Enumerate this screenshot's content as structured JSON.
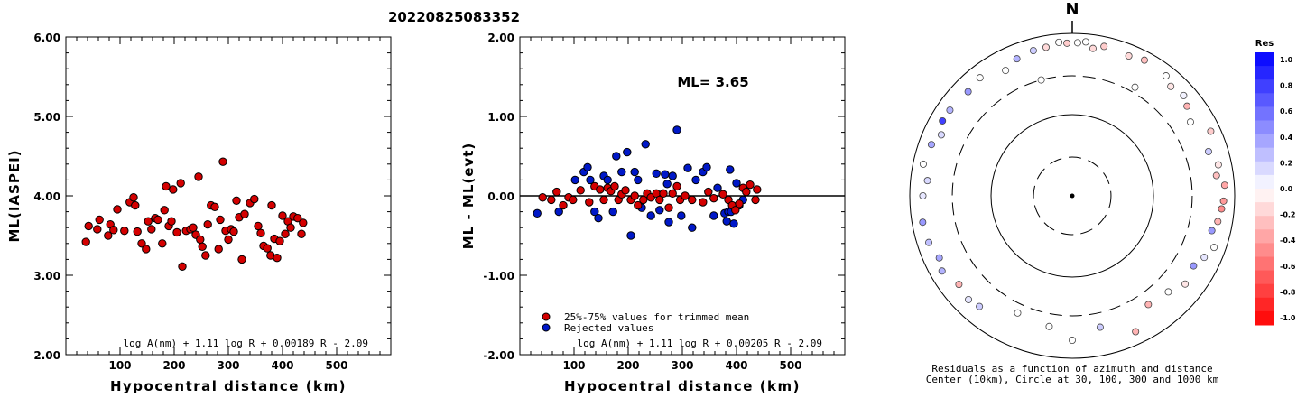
{
  "title": "20220825083352",
  "chart_data": [
    {
      "type": "scatter",
      "ylabel": "ML(IASPEI)",
      "xlabel": "Hypocentral distance (km)",
      "xticks": [
        "100",
        "200",
        "300",
        "400",
        "500"
      ],
      "yticks": [
        "2.00",
        "3.00",
        "4.00",
        "5.00",
        "6.00"
      ],
      "xlim": [
        0,
        600
      ],
      "ylim": [
        2.0,
        6.0
      ],
      "formula": "log A(nm) + 1.11 log R + 0.00189 R - 2.09",
      "marker_color": "#d40000",
      "points": [
        [
          37,
          3.42
        ],
        [
          42,
          3.62
        ],
        [
          58,
          3.58
        ],
        [
          62,
          3.7
        ],
        [
          78,
          3.5
        ],
        [
          82,
          3.64
        ],
        [
          88,
          3.57
        ],
        [
          95,
          3.83
        ],
        [
          108,
          3.56
        ],
        [
          118,
          3.92
        ],
        [
          125,
          3.98
        ],
        [
          128,
          3.88
        ],
        [
          132,
          3.55
        ],
        [
          140,
          3.4
        ],
        [
          148,
          3.33
        ],
        [
          152,
          3.68
        ],
        [
          158,
          3.58
        ],
        [
          165,
          3.72
        ],
        [
          170,
          3.7
        ],
        [
          178,
          3.4
        ],
        [
          182,
          3.82
        ],
        [
          185,
          4.12
        ],
        [
          190,
          3.62
        ],
        [
          195,
          3.68
        ],
        [
          198,
          4.08
        ],
        [
          205,
          3.54
        ],
        [
          212,
          4.16
        ],
        [
          215,
          3.11
        ],
        [
          222,
          3.56
        ],
        [
          230,
          3.58
        ],
        [
          235,
          3.6
        ],
        [
          240,
          3.51
        ],
        [
          245,
          4.24
        ],
        [
          248,
          3.45
        ],
        [
          252,
          3.36
        ],
        [
          258,
          3.25
        ],
        [
          262,
          3.64
        ],
        [
          268,
          3.88
        ],
        [
          275,
          3.86
        ],
        [
          282,
          3.33
        ],
        [
          285,
          3.7
        ],
        [
          290,
          4.43
        ],
        [
          295,
          3.56
        ],
        [
          300,
          3.45
        ],
        [
          305,
          3.58
        ],
        [
          310,
          3.55
        ],
        [
          315,
          3.94
        ],
        [
          320,
          3.73
        ],
        [
          325,
          3.2
        ],
        [
          330,
          3.77
        ],
        [
          340,
          3.91
        ],
        [
          348,
          3.96
        ],
        [
          355,
          3.62
        ],
        [
          360,
          3.53
        ],
        [
          365,
          3.37
        ],
        [
          372,
          3.34
        ],
        [
          378,
          3.25
        ],
        [
          380,
          3.88
        ],
        [
          385,
          3.46
        ],
        [
          390,
          3.22
        ],
        [
          395,
          3.43
        ],
        [
          400,
          3.75
        ],
        [
          405,
          3.52
        ],
        [
          410,
          3.68
        ],
        [
          415,
          3.6
        ],
        [
          420,
          3.74
        ],
        [
          428,
          3.72
        ],
        [
          435,
          3.52
        ],
        [
          438,
          3.66
        ]
      ]
    },
    {
      "type": "scatter",
      "ylabel": "ML - ML(evt)",
      "xlabel": "Hypocentral distance (km)",
      "xticks": [
        "100",
        "200",
        "300",
        "400",
        "500"
      ],
      "yticks": [
        "-2.00",
        "-1.00",
        "0.00",
        "1.00",
        "2.00"
      ],
      "xlim": [
        0,
        600
      ],
      "ylim": [
        -2.0,
        2.0
      ],
      "annotation": "ML= 3.65",
      "formula": "log A(nm) + 1.11 log R + 0.00205 R - 2.09",
      "legend_location": "bottom-left",
      "series": [
        {
          "name": "25%-75% values for trimmed mean",
          "color": "#d40000",
          "points": [
            [
              42,
              -0.02
            ],
            [
              58,
              -0.05
            ],
            [
              68,
              0.05
            ],
            [
              80,
              -0.12
            ],
            [
              90,
              -0.02
            ],
            [
              98,
              -0.05
            ],
            [
              112,
              0.07
            ],
            [
              128,
              -0.08
            ],
            [
              138,
              0.12
            ],
            [
              148,
              0.08
            ],
            [
              155,
              -0.05
            ],
            [
              162,
              0.1
            ],
            [
              168,
              0.06
            ],
            [
              175,
              0.12
            ],
            [
              182,
              -0.05
            ],
            [
              188,
              0.02
            ],
            [
              195,
              0.07
            ],
            [
              205,
              -0.05
            ],
            [
              212,
              0.0
            ],
            [
              218,
              -0.12
            ],
            [
              228,
              -0.05
            ],
            [
              235,
              0.03
            ],
            [
              242,
              -0.02
            ],
            [
              252,
              0.03
            ],
            [
              258,
              -0.05
            ],
            [
              265,
              0.03
            ],
            [
              275,
              -0.15
            ],
            [
              282,
              0.03
            ],
            [
              290,
              0.12
            ],
            [
              296,
              -0.05
            ],
            [
              305,
              0.0
            ],
            [
              318,
              -0.05
            ],
            [
              338,
              -0.08
            ],
            [
              348,
              0.05
            ],
            [
              358,
              -0.03
            ],
            [
              375,
              0.02
            ],
            [
              385,
              -0.05
            ],
            [
              392,
              -0.12
            ],
            [
              398,
              -0.18
            ],
            [
              405,
              -0.1
            ],
            [
              412,
              0.1
            ],
            [
              418,
              0.05
            ],
            [
              425,
              0.14
            ],
            [
              435,
              -0.05
            ],
            [
              438,
              0.08
            ]
          ]
        },
        {
          "name": "Rejected values",
          "color": "#0018c8",
          "points": [
            [
              32,
              -0.22
            ],
            [
              72,
              -0.2
            ],
            [
              102,
              0.2
            ],
            [
              118,
              0.3
            ],
            [
              125,
              0.36
            ],
            [
              130,
              0.2
            ],
            [
              138,
              -0.2
            ],
            [
              145,
              -0.28
            ],
            [
              155,
              0.25
            ],
            [
              162,
              0.2
            ],
            [
              172,
              -0.2
            ],
            [
              178,
              0.5
            ],
            [
              188,
              0.3
            ],
            [
              198,
              0.55
            ],
            [
              205,
              -0.5
            ],
            [
              212,
              0.3
            ],
            [
              218,
              0.2
            ],
            [
              225,
              -0.15
            ],
            [
              232,
              0.65
            ],
            [
              242,
              -0.25
            ],
            [
              252,
              0.28
            ],
            [
              258,
              -0.18
            ],
            [
              268,
              0.27
            ],
            [
              272,
              0.15
            ],
            [
              275,
              -0.33
            ],
            [
              282,
              0.25
            ],
            [
              290,
              0.83
            ],
            [
              298,
              -0.25
            ],
            [
              310,
              0.35
            ],
            [
              318,
              -0.4
            ],
            [
              325,
              0.2
            ],
            [
              338,
              0.3
            ],
            [
              345,
              0.36
            ],
            [
              358,
              -0.25
            ],
            [
              365,
              0.1
            ],
            [
              378,
              -0.22
            ],
            [
              382,
              -0.32
            ],
            [
              385,
              -0.2
            ],
            [
              388,
              0.33
            ],
            [
              390,
              -0.2
            ],
            [
              395,
              -0.35
            ],
            [
              400,
              0.16
            ],
            [
              405,
              -0.12
            ],
            [
              412,
              -0.05
            ]
          ]
        }
      ]
    },
    {
      "type": "polar-scatter",
      "north_label": "N",
      "caption_line1": "Residuals as a function of azimuth and distance",
      "caption_line2": "Center (10km), Circle at 30, 100, 300 and 1000 km",
      "circles_km": [
        30,
        100,
        300,
        1000
      ],
      "colorbar": {
        "title": "Res",
        "ticks": [
          "1.0",
          "0.8",
          "0.6",
          "0.4",
          "0.2",
          "0.0",
          "-0.2",
          "-0.4",
          "-0.6",
          "-0.8",
          "-1.0"
        ],
        "max_color": "#0000ff",
        "zero_color": "#ffffff",
        "min_color": "#ff0000"
      },
      "points": [
        {
          "az": 12,
          "dist": 760,
          "res": -0.2
        },
        {
          "az": 22,
          "dist": 720,
          "res": -0.15
        },
        {
          "az": 28,
          "dist": 780,
          "res": -0.25
        },
        {
          "az": 38,
          "dist": 750,
          "res": 0.0
        },
        {
          "az": 42,
          "dist": 650,
          "res": -0.1
        },
        {
          "az": 48,
          "dist": 700,
          "res": 0.05
        },
        {
          "az": 58,
          "dist": 520,
          "res": 0.0
        },
        {
          "az": 52,
          "dist": 620,
          "res": -0.3
        },
        {
          "az": 65,
          "dist": 760,
          "res": -0.2
        },
        {
          "az": 72,
          "dist": 580,
          "res": 0.2
        },
        {
          "az": 78,
          "dist": 690,
          "res": -0.1
        },
        {
          "az": 82,
          "dist": 620,
          "res": -0.25
        },
        {
          "az": 86,
          "dist": 760,
          "res": -0.35
        },
        {
          "az": 92,
          "dist": 730,
          "res": -0.4
        },
        {
          "az": 95,
          "dist": 700,
          "res": -0.45
        },
        {
          "az": 100,
          "dist": 660,
          "res": -0.3
        },
        {
          "az": 104,
          "dist": 590,
          "res": 0.4
        },
        {
          "az": 110,
          "dist": 720,
          "res": 0.0
        },
        {
          "az": 115,
          "dist": 620,
          "res": 0.1
        },
        {
          "az": 120,
          "dist": 530,
          "res": 0.4
        },
        {
          "az": 128,
          "dist": 580,
          "res": -0.1
        },
        {
          "az": 135,
          "dist": 470,
          "res": 0.0
        },
        {
          "az": 145,
          "dist": 430,
          "res": -0.3
        },
        {
          "az": 155,
          "dist": 700,
          "res": -0.3
        },
        {
          "az": 168,
          "dist": 450,
          "res": 0.2
        },
        {
          "az": 180,
          "dist": 600,
          "res": 0.0
        },
        {
          "az": 190,
          "dist": 430,
          "res": 0.0
        },
        {
          "az": 205,
          "dist": 390,
          "res": 0.0
        },
        {
          "az": 220,
          "dist": 600,
          "res": 0.2
        },
        {
          "az": 225,
          "dist": 640,
          "res": 0.1
        },
        {
          "az": 232,
          "dist": 590,
          "res": -0.3
        },
        {
          "az": 240,
          "dist": 710,
          "res": 0.3
        },
        {
          "az": 245,
          "dist": 640,
          "res": 0.35
        },
        {
          "az": 252,
          "dist": 720,
          "res": 0.25
        },
        {
          "az": 260,
          "dist": 740,
          "res": 0.4
        },
        {
          "az": 270,
          "dist": 690,
          "res": 0.1
        },
        {
          "az": 276,
          "dist": 620,
          "res": 0.15
        },
        {
          "az": 282,
          "dist": 750,
          "res": 0.0
        },
        {
          "az": 290,
          "dist": 700,
          "res": 0.35
        },
        {
          "az": 295,
          "dist": 600,
          "res": 0.15
        },
        {
          "az": 300,
          "dist": 700,
          "res": 0.75
        },
        {
          "az": 305,
          "dist": 690,
          "res": 0.3
        },
        {
          "az": 315,
          "dist": 650,
          "res": 0.4
        },
        {
          "az": 322,
          "dist": 700,
          "res": 0.0
        },
        {
          "az": 332,
          "dist": 560,
          "res": 0.0
        },
        {
          "az": 338,
          "dist": 660,
          "res": 0.3
        },
        {
          "az": 345,
          "dist": 710,
          "res": 0.2
        },
        {
          "az": 350,
          "dist": 720,
          "res": -0.15
        },
        {
          "az": 355,
          "dist": 790,
          "res": 0.0
        },
        {
          "az": 358,
          "dist": 760,
          "res": -0.2
        },
        {
          "az": 2,
          "dist": 770,
          "res": 0.0
        },
        {
          "az": 5,
          "dist": 800,
          "res": 0.0
        },
        {
          "az": 8,
          "dist": 680,
          "res": -0.15
        },
        {
          "az": 345,
          "dist": 300,
          "res": 0.0
        },
        {
          "az": 30,
          "dist": 350,
          "res": 0.0
        }
      ]
    }
  ]
}
